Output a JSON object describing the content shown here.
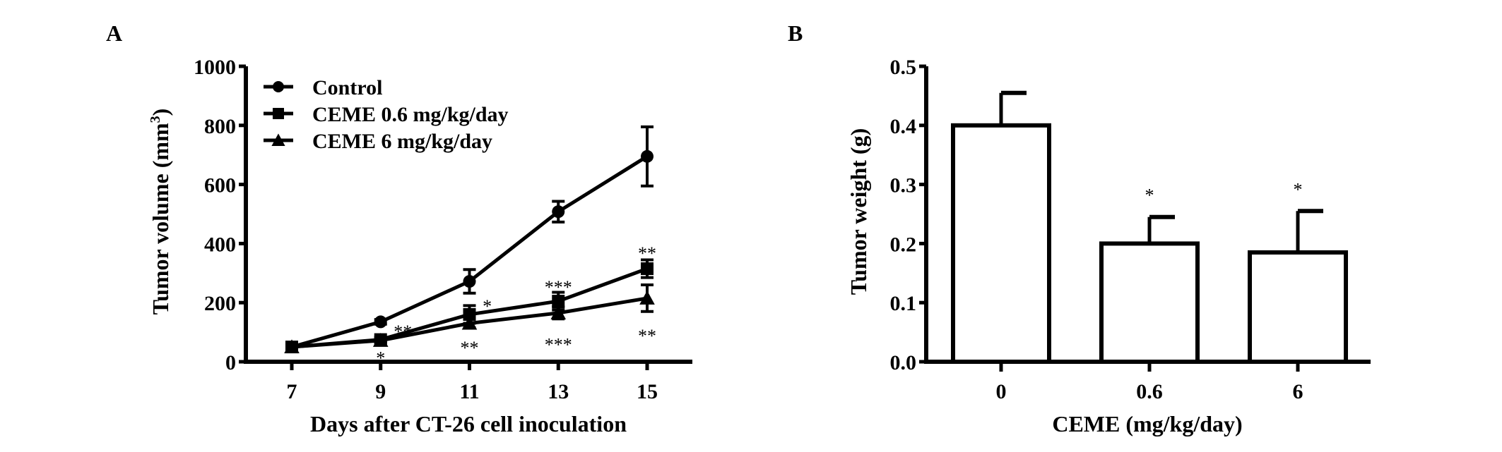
{
  "chart_data": [
    {
      "panel_label": "A",
      "type": "line",
      "xlabel": "Days after CT-26 cell inoculation",
      "ylabel": "Tumor volume (mm",
      "ylabel_sup": "3",
      "ylabel_close": ")",
      "x": [
        7,
        9,
        11,
        13,
        15
      ],
      "x_tick_labels": [
        "7",
        "9",
        "11",
        "13",
        "15"
      ],
      "ylim": [
        0,
        1000
      ],
      "y_ticks": [
        0,
        200,
        400,
        600,
        800,
        1000
      ],
      "y_tick_labels": [
        "0",
        "200",
        "400",
        "600",
        "800",
        "1000"
      ],
      "legend_position": "top-left",
      "series": [
        {
          "name": "Control",
          "marker": "circle",
          "values": [
            50,
            135,
            272,
            508,
            695
          ],
          "errors": [
            5,
            8,
            40,
            35,
            100
          ]
        },
        {
          "name": "CEME 0.6 mg/kg/day",
          "marker": "square",
          "values": [
            50,
            75,
            160,
            205,
            315
          ],
          "errors": [
            5,
            8,
            30,
            30,
            30
          ]
        },
        {
          "name": "CEME 6 mg/kg/day",
          "marker": "triangle",
          "values": [
            50,
            72,
            130,
            165,
            215
          ],
          "errors": [
            5,
            8,
            15,
            20,
            45
          ]
        }
      ],
      "annotations": [
        {
          "x": 9.5,
          "y": 115,
          "text": "**"
        },
        {
          "x": 9,
          "y": 25,
          "text": "*"
        },
        {
          "x": 11.4,
          "y": 200,
          "text": "*"
        },
        {
          "x": 11,
          "y": 60,
          "text": "**"
        },
        {
          "x": 13,
          "y": 265,
          "text": "***"
        },
        {
          "x": 13,
          "y": 70,
          "text": "***"
        },
        {
          "x": 15,
          "y": 380,
          "text": "**"
        },
        {
          "x": 15,
          "y": 100,
          "text": "**"
        }
      ]
    },
    {
      "panel_label": "B",
      "type": "bar",
      "xlabel": "CEME (mg/kg/day)",
      "ylabel": "Tumor weight (g)",
      "categories": [
        "0",
        "0.6",
        "6"
      ],
      "values": [
        0.4,
        0.2,
        0.185
      ],
      "errors": [
        0.055,
        0.045,
        0.07
      ],
      "significance": [
        "",
        "*",
        "*"
      ],
      "ylim": [
        0,
        0.5
      ],
      "y_ticks": [
        0,
        0.1,
        0.2,
        0.3,
        0.4,
        0.5
      ],
      "y_tick_labels": [
        "0.0",
        "0.1",
        "0.2",
        "0.3",
        "0.4",
        "0.5"
      ]
    }
  ]
}
